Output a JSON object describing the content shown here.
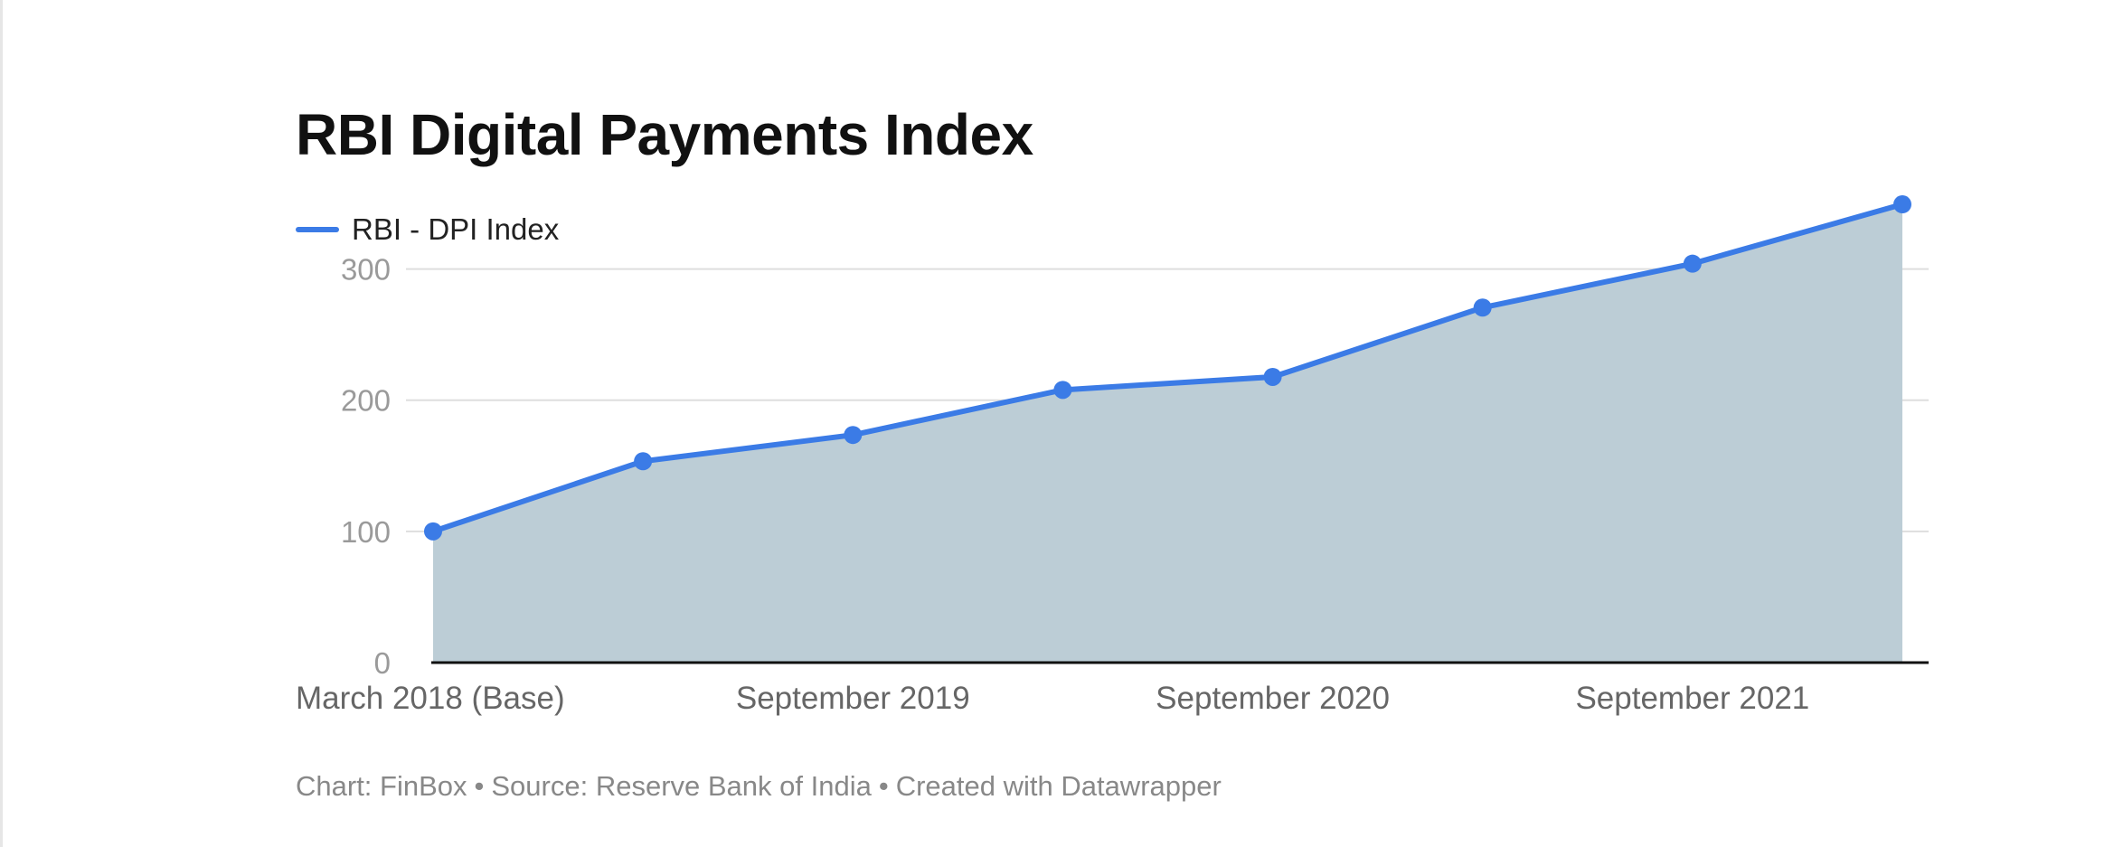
{
  "chart_data": {
    "type": "area",
    "title": "RBI Digital Payments Index",
    "series": [
      {
        "name": "RBI - DPI Index",
        "color": "#3b7be6",
        "values": [
          100,
          153.47,
          173.49,
          207.84,
          217.74,
          270.59,
          304.06,
          349.3
        ]
      }
    ],
    "x_positions": [
      0,
      1,
      2,
      3,
      4,
      5,
      6,
      7
    ],
    "x_tick_labels": [
      {
        "pos": 0,
        "label": "March 2018 (Base)"
      },
      {
        "pos": 2,
        "label": "September 2019"
      },
      {
        "pos": 4,
        "label": "September 2020"
      },
      {
        "pos": 6,
        "label": "September 2021"
      }
    ],
    "y_ticks": [
      0,
      100,
      200,
      300
    ],
    "ylim": [
      0,
      350
    ],
    "area_color": "#bccdd6",
    "grid": true,
    "legend_placement": "top-left"
  },
  "footer": {
    "chart_credit": "Chart: FinBox",
    "source": "Source: Reserve Bank of India",
    "created_with": "Created with Datawrapper",
    "separator": "•"
  }
}
